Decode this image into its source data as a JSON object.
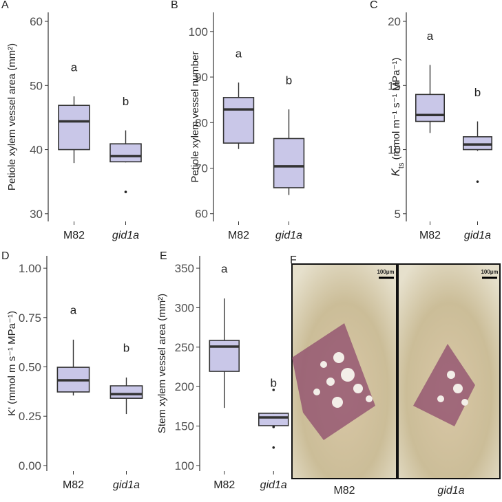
{
  "chart_data": [
    {
      "type": "box",
      "panel": "A",
      "ylabel": "Petiole xylem vessel area (mm²)",
      "categories": [
        "M82",
        "gid1a"
      ],
      "category_italic": [
        false,
        true
      ],
      "color": "#c9c7e8",
      "ylim": [
        28.8,
        61.4
      ],
      "yticks": [
        30,
        40,
        50,
        60
      ],
      "boxes": [
        {
          "min": 37.9,
          "q1": 40.0,
          "median": 44.4,
          "q3": 46.9,
          "max": 48.3,
          "outliers": [],
          "letter": "a"
        },
        {
          "min": 38.0,
          "q1": 38.1,
          "median": 39.0,
          "q3": 40.9,
          "max": 43.0,
          "outliers": [
            33.4
          ],
          "letter": "b"
        }
      ]
    },
    {
      "type": "box",
      "panel": "B",
      "ylabel": "Petiole xylem vessel number",
      "categories": [
        "M82",
        "gid1a"
      ],
      "category_italic": [
        false,
        true
      ],
      "color": "#c9c7e8",
      "ylim": [
        58.3,
        104.2
      ],
      "yticks": [
        60,
        70,
        80,
        90,
        100
      ],
      "boxes": [
        {
          "min": 74.2,
          "q1": 75.5,
          "median": 82.9,
          "q3": 85.5,
          "max": 88.8,
          "outliers": [],
          "letter": "a"
        },
        {
          "min": 64.1,
          "q1": 65.7,
          "median": 70.4,
          "q3": 76.5,
          "max": 82.9,
          "outliers": [],
          "letter": "b"
        }
      ]
    },
    {
      "type": "box",
      "panel": "C",
      "ylabel": "K",
      "ylabel_sub": "ts",
      "ylabel_rest": " (mmol m⁻¹ s⁻¹ MPa⁻¹)",
      "categories": [
        "M82",
        "gid1a"
      ],
      "category_italic": [
        false,
        true
      ],
      "color": "#c9c7e8",
      "ylim": [
        4.4,
        20.7
      ],
      "yticks": [
        5,
        10,
        15,
        20
      ],
      "boxes": [
        {
          "min": 11.3,
          "q1": 12.2,
          "median": 12.7,
          "q3": 14.3,
          "max": 16.6,
          "outliers": [],
          "letter": "a"
        },
        {
          "min": 9.9,
          "q1": 10.0,
          "median": 10.4,
          "q3": 11.0,
          "max": 12.2,
          "outliers": [
            7.5
          ],
          "letter": "b"
        }
      ]
    },
    {
      "type": "box",
      "panel": "D",
      "ylabel": "K' (mmol m s⁻¹ MPa⁻¹)",
      "categories": [
        "M82",
        "gid1a"
      ],
      "category_italic": [
        false,
        true
      ],
      "color": "#c9c7e8",
      "ylim": [
        -0.028,
        1.063
      ],
      "yticks": [
        {
          "value": 0,
          "label": "0.00"
        },
        {
          "value": 0.25,
          "label": "0.25"
        },
        {
          "value": 0.5,
          "label": "0.50"
        },
        {
          "value": 0.75,
          "label": "0.75"
        },
        {
          "value": 1,
          "label": "1.00"
        }
      ],
      "boxes": [
        {
          "min": 0.355,
          "q1": 0.373,
          "median": 0.432,
          "q3": 0.498,
          "max": 0.638,
          "outliers": [],
          "letter": "a"
        },
        {
          "min": 0.261,
          "q1": 0.341,
          "median": 0.362,
          "q3": 0.404,
          "max": 0.446,
          "outliers": [],
          "letter": "b"
        }
      ]
    },
    {
      "type": "box",
      "panel": "E",
      "ylabel": "Stem xylem vessel area (mm²)",
      "categories": [
        "M82",
        "gid1a"
      ],
      "category_italic": [
        false,
        true
      ],
      "color": "#c9c7e8",
      "ylim": [
        93,
        365.7
      ],
      "yticks": [
        100,
        150,
        200,
        250,
        300,
        350
      ],
      "boxes": [
        {
          "min": 173.1,
          "q1": 219.3,
          "median": 250.7,
          "q3": 258.5,
          "max": 311.7,
          "outliers": [],
          "letter": "a"
        },
        {
          "min": 150.5,
          "q1": 150.5,
          "median": 161,
          "q3": 166.2,
          "max": 167,
          "outliers": [
            195.8,
            148.9,
            122.8
          ],
          "letter": "b"
        }
      ]
    }
  ],
  "panel_f": {
    "label": "F",
    "images": [
      {
        "caption": "M82",
        "scale_bar": "100µm"
      },
      {
        "caption": "gid1a",
        "scale_bar": "100µm"
      }
    ]
  }
}
